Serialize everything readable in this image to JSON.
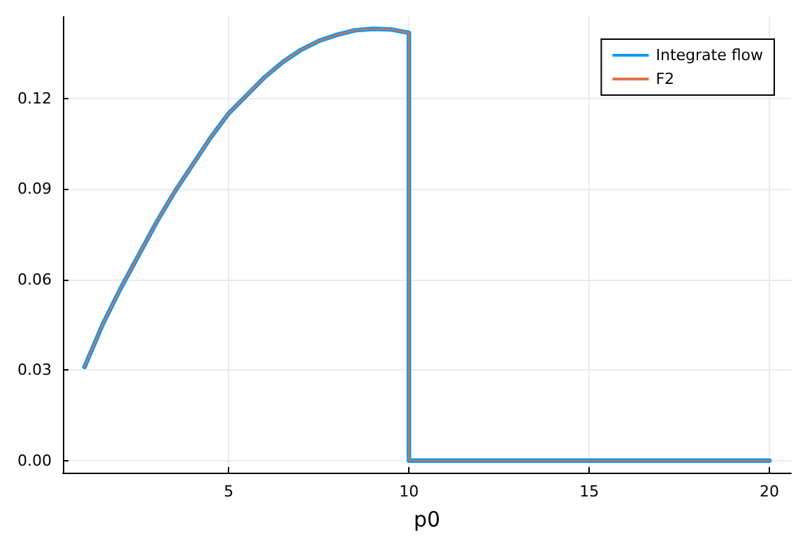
{
  "chart_data": {
    "type": "line",
    "xlabel": "p0",
    "x": [
      1,
      1.5,
      2,
      2.5,
      3,
      3.5,
      4,
      4.5,
      5,
      5.5,
      6,
      6.5,
      7,
      7.5,
      8,
      8.5,
      9,
      9.5,
      10,
      10,
      20
    ],
    "series": [
      {
        "name": "Integrate flow",
        "color": "#009afa",
        "values": [
          0.031,
          0.045,
          0.057,
          0.068,
          0.079,
          0.089,
          0.098,
          0.107,
          0.115,
          0.121,
          0.127,
          0.132,
          0.136,
          0.139,
          0.141,
          0.1425,
          0.143,
          0.1428,
          0.1417,
          0,
          0
        ]
      },
      {
        "name": "F2",
        "color": "#e36f47",
        "values": [
          0.031,
          0.045,
          0.057,
          0.068,
          0.079,
          0.089,
          0.098,
          0.107,
          0.115,
          0.121,
          0.127,
          0.132,
          0.136,
          0.139,
          0.141,
          0.1425,
          0.143,
          0.1428,
          0.1417,
          0,
          0
        ]
      }
    ],
    "xlim": [
      0.4,
      20.6
    ],
    "xticks": [
      5,
      10,
      15,
      20
    ],
    "ylim": [
      -0.004,
      0.147
    ],
    "yticks": [
      {
        "value": 0,
        "label": "0.00"
      },
      {
        "value": 0.03,
        "label": "0.03"
      },
      {
        "value": 0.06,
        "label": "0.06"
      },
      {
        "value": 0.09,
        "label": "0.09"
      },
      {
        "value": 0.12,
        "label": "0.12"
      }
    ],
    "grid": true,
    "legend": "top right",
    "marker": "none",
    "line_style": "solid"
  }
}
